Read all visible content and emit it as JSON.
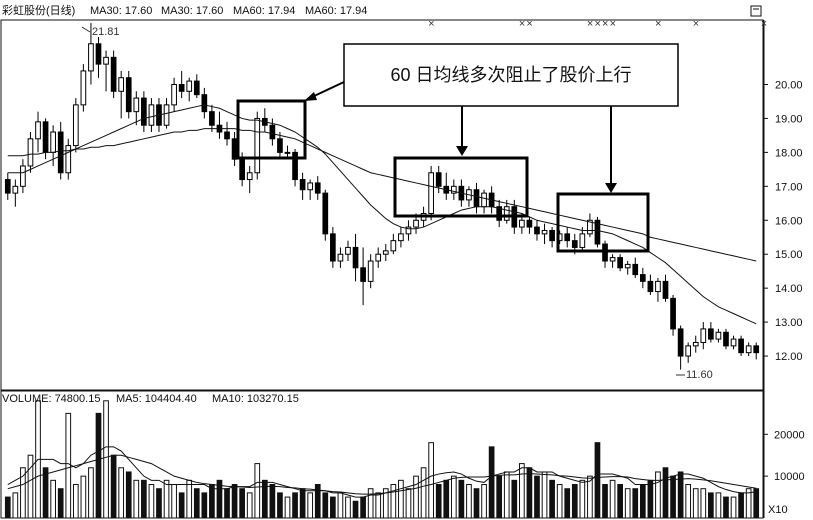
{
  "header": {
    "stock_name": "彩虹股份(日线)",
    "ma_labels": [
      "MA30: 17.60",
      "MA30: 17.60",
      "MA60: 17.94",
      "MA60: 17.94"
    ]
  },
  "annotation": {
    "text": "60 日均线多次阻止了股价上行"
  },
  "extremes": {
    "high_label": "21.81",
    "low_label": "11.60"
  },
  "volume_header": {
    "volume": "VOLUME: 74800.15",
    "ma5": "MA5: 104404.40",
    "ma10": "MA10: 103270.15"
  },
  "volume_axis": {
    "unit_label": "X10",
    "ticks": [
      10000,
      20000
    ]
  },
  "colors": {
    "up": "#000000",
    "down": "#000000",
    "marker": "#cc00cc",
    "grid": "#000000"
  },
  "chart_data": [
    {
      "type": "candlestick",
      "title": "",
      "ylim": [
        11.0,
        21.9
      ],
      "yticks": [
        12.0,
        13.0,
        14.0,
        15.0,
        16.0,
        17.0,
        18.0,
        19.0,
        20.0
      ],
      "ohlc": [
        [
          17.2,
          17.4,
          16.6,
          16.8
        ],
        [
          16.8,
          17.2,
          16.4,
          17.0
        ],
        [
          17.0,
          17.8,
          16.8,
          17.6
        ],
        [
          17.6,
          18.6,
          17.4,
          18.4
        ],
        [
          18.4,
          19.2,
          18.0,
          18.9
        ],
        [
          18.9,
          19.0,
          17.8,
          18.0
        ],
        [
          18.0,
          18.8,
          17.6,
          18.6
        ],
        [
          18.6,
          18.9,
          17.2,
          17.4
        ],
        [
          17.4,
          18.4,
          17.2,
          18.2
        ],
        [
          18.2,
          19.6,
          18.0,
          19.4
        ],
        [
          19.4,
          20.6,
          19.2,
          20.4
        ],
        [
          20.4,
          21.81,
          20.0,
          21.2
        ],
        [
          21.2,
          21.4,
          20.2,
          20.6
        ],
        [
          20.6,
          21.0,
          19.8,
          20.8
        ],
        [
          20.8,
          21.0,
          19.6,
          19.8
        ],
        [
          19.8,
          20.4,
          19.0,
          20.2
        ],
        [
          20.2,
          20.4,
          19.0,
          19.2
        ],
        [
          19.2,
          19.8,
          18.8,
          19.6
        ],
        [
          19.6,
          19.8,
          18.6,
          18.8
        ],
        [
          18.8,
          19.6,
          18.6,
          19.4
        ],
        [
          19.4,
          19.6,
          18.6,
          18.8
        ],
        [
          18.8,
          19.6,
          18.7,
          19.4
        ],
        [
          19.4,
          20.2,
          19.2,
          20.0
        ],
        [
          20.0,
          20.4,
          19.6,
          19.8
        ],
        [
          19.8,
          20.2,
          19.5,
          20.1
        ],
        [
          20.1,
          20.3,
          19.6,
          19.7
        ],
        [
          19.7,
          19.9,
          19.0,
          19.2
        ],
        [
          19.2,
          19.4,
          18.6,
          18.8
        ],
        [
          18.8,
          19.2,
          18.4,
          18.6
        ],
        [
          18.6,
          18.9,
          18.2,
          18.4
        ],
        [
          18.4,
          18.6,
          17.6,
          17.8
        ],
        [
          17.8,
          18.0,
          17.0,
          17.2
        ],
        [
          17.2,
          17.6,
          16.8,
          17.4
        ],
        [
          17.4,
          19.2,
          17.2,
          19.0
        ],
        [
          19.0,
          19.3,
          18.6,
          18.8
        ],
        [
          18.8,
          19.0,
          18.2,
          18.4
        ],
        [
          18.4,
          18.6,
          17.8,
          18.0
        ],
        [
          18.0,
          18.2,
          17.8,
          18.0
        ],
        [
          18.0,
          18.1,
          17.0,
          17.2
        ],
        [
          17.2,
          17.4,
          16.6,
          16.9
        ],
        [
          16.9,
          17.2,
          16.6,
          17.1
        ],
        [
          17.1,
          17.3,
          16.6,
          16.8
        ],
        [
          16.8,
          16.9,
          15.4,
          15.6
        ],
        [
          15.6,
          15.8,
          14.6,
          14.8
        ],
        [
          14.8,
          15.2,
          14.6,
          15.0
        ],
        [
          15.0,
          15.4,
          14.8,
          15.2
        ],
        [
          15.2,
          15.6,
          14.2,
          14.6
        ],
        [
          14.6,
          15.2,
          13.5,
          14.2
        ],
        [
          14.2,
          15.0,
          14.0,
          14.8
        ],
        [
          14.8,
          15.2,
          14.6,
          15.0
        ],
        [
          15.0,
          15.3,
          14.8,
          15.1
        ],
        [
          15.1,
          15.6,
          15.0,
          15.4
        ],
        [
          15.4,
          15.8,
          15.2,
          15.6
        ],
        [
          15.6,
          16.0,
          15.4,
          15.8
        ],
        [
          15.8,
          16.2,
          15.6,
          16.0
        ],
        [
          16.0,
          16.4,
          15.8,
          16.2
        ],
        [
          16.2,
          17.6,
          16.0,
          17.4
        ],
        [
          17.4,
          17.6,
          16.8,
          17.0
        ],
        [
          17.0,
          17.4,
          16.6,
          16.8
        ],
        [
          16.8,
          17.2,
          16.6,
          17.0
        ],
        [
          17.0,
          17.2,
          16.4,
          16.6
        ],
        [
          16.6,
          17.0,
          16.4,
          16.9
        ],
        [
          16.9,
          17.1,
          16.2,
          16.4
        ],
        [
          16.4,
          16.9,
          16.2,
          16.8
        ],
        [
          16.8,
          17.0,
          16.2,
          16.4
        ],
        [
          16.4,
          16.6,
          15.8,
          16.0
        ],
        [
          16.0,
          16.6,
          15.9,
          16.4
        ],
        [
          16.4,
          16.6,
          15.6,
          15.8
        ],
        [
          15.8,
          16.2,
          15.6,
          16.0
        ],
        [
          16.0,
          16.1,
          15.6,
          15.8
        ],
        [
          15.8,
          16.0,
          15.4,
          15.6
        ],
        [
          15.6,
          15.9,
          15.3,
          15.7
        ],
        [
          15.7,
          15.8,
          15.2,
          15.4
        ],
        [
          15.4,
          15.7,
          15.3,
          15.6
        ],
        [
          15.6,
          15.8,
          15.2,
          15.4
        ],
        [
          15.4,
          15.6,
          15.0,
          15.2
        ],
        [
          15.2,
          15.8,
          15.1,
          15.6
        ],
        [
          15.6,
          16.2,
          15.5,
          16.0
        ],
        [
          16.0,
          16.1,
          15.2,
          15.3
        ],
        [
          15.3,
          15.4,
          14.6,
          14.8
        ],
        [
          14.8,
          15.0,
          14.6,
          14.9
        ],
        [
          14.9,
          15.0,
          14.5,
          14.6
        ],
        [
          14.6,
          14.8,
          14.4,
          14.7
        ],
        [
          14.7,
          14.9,
          14.3,
          14.4
        ],
        [
          14.4,
          14.6,
          14.0,
          14.2
        ],
        [
          14.2,
          14.4,
          13.8,
          13.9
        ],
        [
          13.9,
          14.3,
          13.6,
          14.2
        ],
        [
          14.2,
          14.4,
          13.6,
          13.7
        ],
        [
          13.7,
          13.8,
          12.6,
          12.8
        ],
        [
          12.8,
          12.9,
          11.6,
          12.0
        ],
        [
          12.0,
          12.4,
          11.8,
          12.3
        ],
        [
          12.3,
          12.6,
          12.1,
          12.4
        ],
        [
          12.4,
          13.0,
          12.2,
          12.8
        ],
        [
          12.8,
          13.0,
          12.4,
          12.5
        ],
        [
          12.5,
          12.8,
          12.4,
          12.7
        ],
        [
          12.7,
          12.8,
          12.2,
          12.3
        ],
        [
          12.3,
          12.6,
          12.2,
          12.5
        ],
        [
          12.5,
          12.6,
          12.0,
          12.1
        ],
        [
          12.1,
          12.4,
          12.0,
          12.3
        ],
        [
          12.3,
          12.4,
          11.9,
          12.1
        ]
      ],
      "ma_short": [
        17.4,
        17.4,
        17.4,
        17.5,
        17.6,
        17.7,
        17.8,
        17.9,
        18.0,
        18.1,
        18.2,
        18.3,
        18.4,
        18.5,
        18.6,
        18.7,
        18.8,
        18.9,
        19.0,
        19.05,
        19.1,
        19.15,
        19.2,
        19.25,
        19.3,
        19.35,
        19.4,
        19.35,
        19.3,
        19.2,
        19.1,
        19.0,
        18.95,
        18.95,
        18.9,
        18.85,
        18.8,
        18.7,
        18.6,
        18.45,
        18.3,
        18.15,
        17.95,
        17.7,
        17.45,
        17.2,
        16.95,
        16.7,
        16.45,
        16.25,
        16.05,
        15.9,
        15.8,
        15.75,
        15.75,
        15.8,
        15.9,
        16.0,
        16.1,
        16.2,
        16.3,
        16.35,
        16.4,
        16.4,
        16.4,
        16.35,
        16.3,
        16.25,
        16.2,
        16.1,
        16.0,
        15.95,
        15.9,
        15.85,
        15.8,
        15.75,
        15.7,
        15.7,
        15.7,
        15.65,
        15.6,
        15.5,
        15.4,
        15.3,
        15.2,
        15.05,
        14.9,
        14.75,
        14.55,
        14.35,
        14.15,
        13.95,
        13.75,
        13.6,
        13.45,
        13.35,
        13.25,
        13.15,
        13.05,
        12.95
      ],
      "ma_long": [
        17.9,
        17.9,
        17.9,
        17.95,
        17.95,
        18.0,
        18.0,
        18.05,
        18.05,
        18.1,
        18.1,
        18.15,
        18.15,
        18.2,
        18.2,
        18.25,
        18.3,
        18.35,
        18.4,
        18.45,
        18.5,
        18.55,
        18.6,
        18.6,
        18.65,
        18.65,
        18.7,
        18.7,
        18.7,
        18.7,
        18.7,
        18.65,
        18.65,
        18.6,
        18.6,
        18.55,
        18.5,
        18.45,
        18.4,
        18.3,
        18.2,
        18.1,
        18.0,
        17.9,
        17.8,
        17.7,
        17.6,
        17.5,
        17.4,
        17.35,
        17.3,
        17.25,
        17.2,
        17.15,
        17.1,
        17.05,
        17.0,
        16.95,
        16.9,
        16.85,
        16.8,
        16.75,
        16.7,
        16.65,
        16.6,
        16.55,
        16.5,
        16.45,
        16.4,
        16.35,
        16.3,
        16.25,
        16.2,
        16.15,
        16.1,
        16.05,
        16.0,
        15.95,
        15.9,
        15.85,
        15.8,
        15.75,
        15.7,
        15.65,
        15.6,
        15.5,
        15.45,
        15.4,
        15.35,
        15.3,
        15.25,
        15.2,
        15.15,
        15.1,
        15.05,
        15.0,
        14.95,
        14.9,
        14.85,
        14.8
      ],
      "markers_at_index": [
        56,
        68,
        69,
        77,
        78,
        79,
        80,
        86,
        91,
        100
      ]
    },
    {
      "type": "bar",
      "title": "",
      "ylim": [
        0,
        27000
      ],
      "values": [
        5000,
        6000,
        12000,
        15000,
        28000,
        12000,
        9000,
        7000,
        25000,
        8000,
        10000,
        12000,
        25000,
        28000,
        15000,
        12000,
        11000,
        9000,
        9000,
        8000,
        7000,
        9000,
        8000,
        6000,
        9000,
        7000,
        6000,
        8000,
        9000,
        7000,
        8000,
        7000,
        6000,
        13000,
        9000,
        8000,
        6000,
        5000,
        6000,
        7000,
        6000,
        8000,
        6000,
        5000,
        6000,
        5000,
        4000,
        5000,
        7000,
        6000,
        7000,
        8000,
        9000,
        7000,
        10000,
        12000,
        18000,
        8000,
        9000,
        10000,
        9000,
        8000,
        7000,
        8000,
        17000,
        10000,
        11000,
        9000,
        13000,
        12000,
        10000,
        11000,
        9000,
        8000,
        7000,
        8000,
        9000,
        10000,
        18000,
        8000,
        9000,
        8000,
        7000,
        7000,
        8000,
        9000,
        11000,
        12000,
        10000,
        11000,
        8000,
        7000,
        7000,
        6000,
        6000,
        5000,
        5000,
        6000,
        7000,
        7000
      ],
      "ma5": [
        8000,
        9000,
        10000,
        12000,
        14000,
        14000,
        14000,
        13000,
        13000,
        12000,
        13000,
        15000,
        16000,
        17000,
        17000,
        16000,
        14000,
        12000,
        10000,
        9000,
        9000,
        8000,
        8000,
        8000,
        8000,
        8000,
        8000,
        7000,
        7000,
        7000,
        7500,
        7500,
        7500,
        8500,
        8500,
        8500,
        8000,
        7500,
        7000,
        6500,
        6500,
        6500,
        6500,
        6000,
        6000,
        5500,
        5000,
        5000,
        5500,
        5500,
        6000,
        6500,
        7000,
        7500,
        8000,
        9000,
        10000,
        10500,
        10800,
        11000,
        10500,
        9500,
        8800,
        8500,
        10000,
        10500,
        11000,
        11000,
        12000,
        12000,
        11000,
        11000,
        11000,
        10000,
        9500,
        9000,
        8500,
        8800,
        10500,
        10500,
        10500,
        10000,
        9500,
        8000,
        8000,
        8000,
        8500,
        9500,
        10000,
        10500,
        10500,
        10000,
        9500,
        8500,
        7500,
        6800,
        6300,
        6000,
        6000,
        6300
      ],
      "ma10": [
        7000,
        7500,
        8000,
        9000,
        10000,
        10500,
        11000,
        11500,
        12000,
        12500,
        13000,
        13500,
        14000,
        14500,
        15000,
        15000,
        14500,
        14000,
        13500,
        13000,
        12000,
        11000,
        10000,
        9500,
        9000,
        8500,
        8200,
        8000,
        7800,
        7600,
        7500,
        7400,
        7300,
        7400,
        7500,
        7600,
        7500,
        7300,
        7200,
        7000,
        6900,
        6700,
        6500,
        6300,
        6200,
        6000,
        5800,
        5700,
        5700,
        5800,
        6000,
        6200,
        6500,
        6800,
        7100,
        7600,
        8000,
        8500,
        9000,
        9500,
        9700,
        9800,
        9800,
        9800,
        10000,
        10200,
        10300,
        10300,
        10500,
        10600,
        10500,
        10400,
        10300,
        10100,
        10000,
        9800,
        9600,
        9500,
        9700,
        9800,
        9900,
        9900,
        9800,
        9400,
        9200,
        9000,
        9000,
        9100,
        9200,
        9300,
        9400,
        9300,
        9100,
        8900,
        8600,
        8300,
        8000,
        7700,
        7400,
        7100
      ]
    }
  ]
}
